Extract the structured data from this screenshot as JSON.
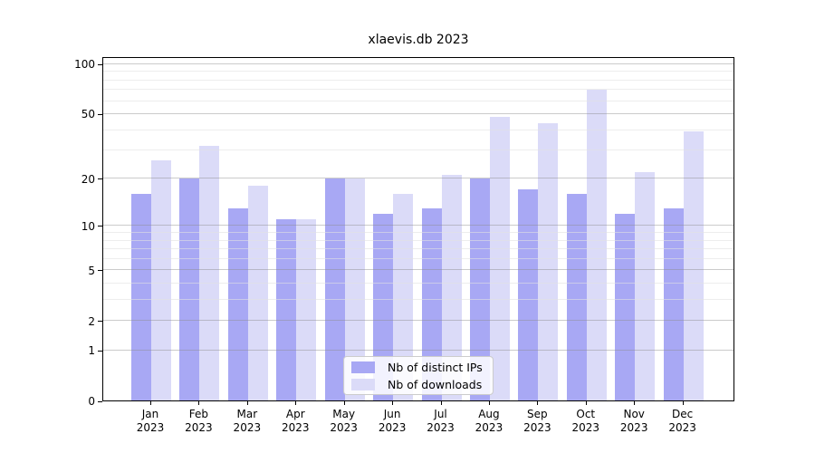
{
  "title": "xlaevis.db 2023",
  "chart_data": {
    "type": "bar",
    "title": "xlaevis.db 2023",
    "y_scale": "log10(1+value)",
    "categories": [
      "Jan",
      "Feb",
      "Mar",
      "Apr",
      "May",
      "Jun",
      "Jul",
      "Aug",
      "Sep",
      "Oct",
      "Nov",
      "Dec"
    ],
    "category_year": "2023",
    "series": [
      {
        "name": "Nb of distinct IPs",
        "color": "#a8a8f4",
        "values": [
          16,
          20,
          13,
          11,
          20,
          12,
          13,
          20,
          17,
          16,
          12,
          13
        ]
      },
      {
        "name": "Nb of downloads",
        "color": "#dbdbf8",
        "values": [
          26,
          32,
          18,
          11,
          20,
          16,
          21,
          48,
          44,
          70,
          22,
          39
        ]
      }
    ],
    "xlabel": "",
    "ylabel": "",
    "ylim": [
      0,
      111
    ],
    "y_tick_labels": [
      "0",
      "1",
      "2",
      "5",
      "10",
      "20",
      "50",
      "100"
    ],
    "y_major_gridlines": [
      1,
      2,
      5,
      10,
      20,
      50,
      100
    ],
    "y_minor_gridlines": [
      3,
      4,
      6,
      7,
      8,
      9,
      30,
      40,
      60,
      70,
      80,
      90
    ],
    "grid": true,
    "legend_position": "lower center"
  }
}
